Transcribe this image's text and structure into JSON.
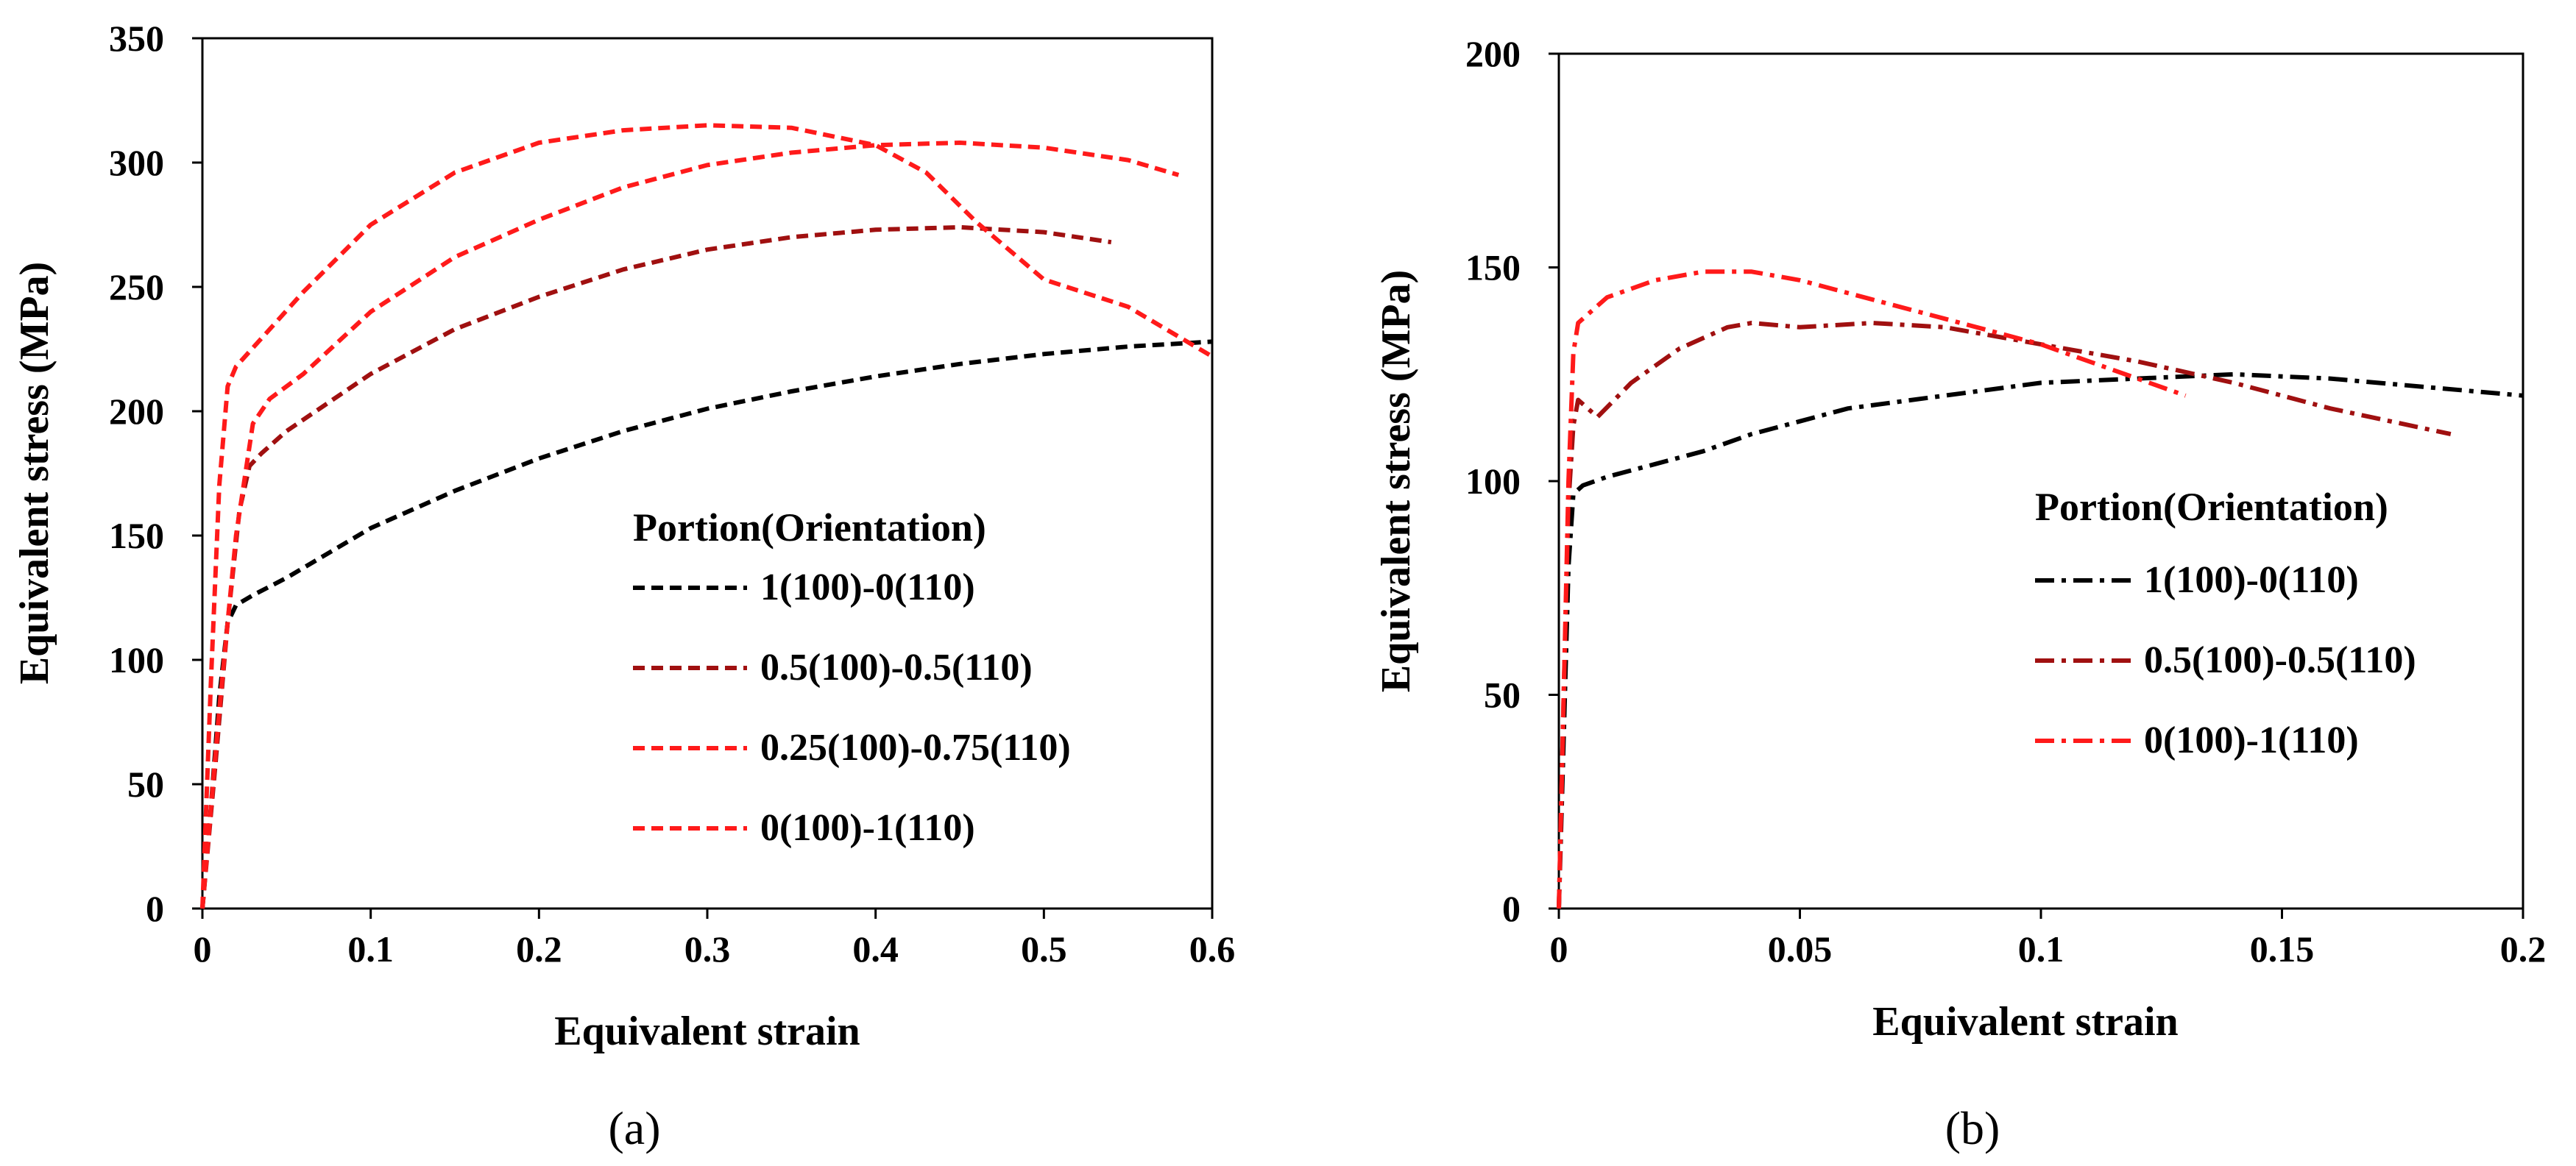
{
  "chart_data": [
    {
      "panel": "(a)",
      "type": "line",
      "title": "",
      "xlabel": "Equivalent strain",
      "ylabel": "Equivalent stress (MPa)",
      "xlim": [
        0,
        0.6
      ],
      "ylim": [
        0,
        350
      ],
      "xticks": [
        0,
        0.1,
        0.2,
        0.3,
        0.4,
        0.5,
        0.6
      ],
      "xtick_labels": [
        "0",
        "0.1",
        "0.2",
        "0.3",
        "0.4",
        "0.5",
        "0.6"
      ],
      "yticks": [
        0,
        50,
        100,
        150,
        200,
        250,
        300,
        350
      ],
      "ytick_labels": [
        "0",
        "50",
        "100",
        "150",
        "200",
        "250",
        "300",
        "350"
      ],
      "legend_title": "Portion(Orientation)",
      "legend_position": "lower-right",
      "line_style": "dashed",
      "series": [
        {
          "name": "1(100)-0(110)",
          "color": "#000000",
          "x": [
            0,
            0.005,
            0.01,
            0.015,
            0.02,
            0.03,
            0.05,
            0.1,
            0.15,
            0.2,
            0.25,
            0.3,
            0.35,
            0.4,
            0.45,
            0.5,
            0.55,
            0.6
          ],
          "y": [
            0,
            40,
            85,
            115,
            122,
            126,
            133,
            153,
            168,
            181,
            192,
            201,
            208,
            214,
            219,
            223,
            226,
            228
          ]
        },
        {
          "name": "0.5(100)-0.5(110)",
          "color": "#a01010",
          "x": [
            0,
            0.008,
            0.015,
            0.022,
            0.028,
            0.035,
            0.05,
            0.1,
            0.15,
            0.2,
            0.25,
            0.3,
            0.35,
            0.4,
            0.45,
            0.5,
            0.54
          ],
          "y": [
            0,
            60,
            115,
            160,
            178,
            183,
            192,
            215,
            233,
            246,
            257,
            265,
            270,
            273,
            274,
            272,
            268
          ]
        },
        {
          "name": "0.25(100)-0.75(110)",
          "color": "#ff1a1a",
          "x": [
            0,
            0.01,
            0.02,
            0.03,
            0.04,
            0.06,
            0.1,
            0.15,
            0.2,
            0.25,
            0.3,
            0.35,
            0.4,
            0.45,
            0.5,
            0.55,
            0.58
          ],
          "y": [
            0,
            80,
            150,
            195,
            205,
            215,
            240,
            262,
            277,
            290,
            299,
            304,
            307,
            308,
            306,
            301,
            295
          ]
        },
        {
          "name": "0(100)-1(110)",
          "color": "#ff1a1a",
          "x": [
            0,
            0.005,
            0.01,
            0.015,
            0.02,
            0.04,
            0.06,
            0.1,
            0.15,
            0.2,
            0.25,
            0.3,
            0.35,
            0.4,
            0.43,
            0.46,
            0.5,
            0.55,
            0.6
          ],
          "y": [
            0,
            90,
            170,
            210,
            218,
            233,
            248,
            275,
            296,
            308,
            313,
            315,
            314,
            307,
            296,
            276,
            253,
            242,
            222
          ]
        }
      ]
    },
    {
      "panel": "(b)",
      "type": "line",
      "title": "",
      "xlabel": "Equivalent strain",
      "ylabel": "Equivalent stress (MPa)",
      "xlim": [
        0,
        0.2
      ],
      "ylim": [
        0,
        200
      ],
      "xticks": [
        0,
        0.05,
        0.1,
        0.15,
        0.2
      ],
      "xtick_labels": [
        "0",
        "0.05",
        "0.1",
        "0.15",
        "0.2"
      ],
      "yticks": [
        0,
        50,
        100,
        150,
        200
      ],
      "ytick_labels": [
        "0",
        "50",
        "100",
        "150",
        "200"
      ],
      "legend_title": "Portion(Orientation)",
      "legend_position": "lower-right",
      "line_style": "dash-dot",
      "series": [
        {
          "name": "1(100)-0(110)",
          "color": "#000000",
          "x": [
            0,
            0.001,
            0.002,
            0.003,
            0.005,
            0.01,
            0.02,
            0.03,
            0.04,
            0.05,
            0.06,
            0.08,
            0.1,
            0.12,
            0.14,
            0.16,
            0.18,
            0.2
          ],
          "y": [
            0,
            40,
            80,
            97,
            99,
            101,
            104,
            107,
            111,
            114,
            117,
            120,
            123,
            124,
            125,
            124,
            122,
            120
          ]
        },
        {
          "name": "0.5(100)-0.5(110)",
          "color": "#a01010",
          "x": [
            0,
            0.001,
            0.002,
            0.003,
            0.004,
            0.006,
            0.008,
            0.015,
            0.025,
            0.035,
            0.04,
            0.05,
            0.065,
            0.08,
            0.1,
            0.12,
            0.14,
            0.16,
            0.185
          ],
          "y": [
            0,
            50,
            95,
            113,
            119,
            117,
            115,
            123,
            131,
            136,
            137,
            136,
            137,
            136,
            132,
            128,
            123,
            117,
            111
          ]
        },
        {
          "name": "0(100)-1(110)",
          "color": "#ff1a1a",
          "x": [
            0,
            0.001,
            0.002,
            0.003,
            0.004,
            0.006,
            0.01,
            0.02,
            0.03,
            0.04,
            0.05,
            0.06,
            0.08,
            0.1,
            0.12,
            0.13
          ],
          "y": [
            0,
            50,
            100,
            130,
            137,
            139,
            143,
            147,
            149,
            149,
            147,
            144,
            138,
            132,
            124,
            120
          ]
        }
      ]
    }
  ]
}
